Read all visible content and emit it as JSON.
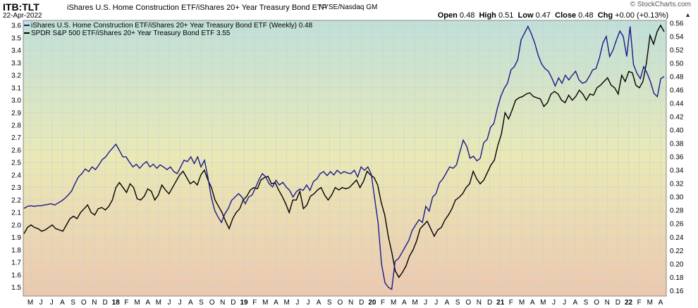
{
  "header": {
    "ticker": "ITB:TLT",
    "description": "iShares U.S. Home Construction ETF/iShares 20+ Year Treasury Bond ETF",
    "exchange": "NYSE/Nasdaq GM",
    "date": "22-Apr-2022",
    "brand": "© StockCharts.com",
    "arrow": "▲",
    "open_label": "Open",
    "open": "0.48",
    "high_label": "High",
    "high": "0.51",
    "low_label": "Low",
    "low": "0.47",
    "close_label": "Close",
    "close": "0.48",
    "chg_label": "Chg",
    "chg": "+0.00 (+0.13%)"
  },
  "colors": {
    "itb_tlt": "#1a1a8c",
    "spx_tlt": "#000000",
    "bg_top": "#bfe0d9",
    "bg_mid": "#eae9b5",
    "bg_bottom": "#ecc8ae",
    "grid": "#cfcfcf"
  },
  "chart_data": {
    "type": "line",
    "left_axis": {
      "ticks": [
        "1.5",
        "1.6",
        "1.7",
        "1.8",
        "1.9",
        "2.0",
        "2.1",
        "2.2",
        "2.3",
        "2.4",
        "2.5",
        "2.6",
        "2.7",
        "2.8",
        "2.9",
        "3.0",
        "3.1",
        "3.2",
        "3.3",
        "3.4",
        "3.5",
        "3.6"
      ],
      "ylim": [
        1.43,
        3.64
      ]
    },
    "right_axis": {
      "ticks": [
        "0.16",
        "0.18",
        "0.20",
        "0.22",
        "0.24",
        "0.26",
        "0.28",
        "0.30",
        "0.32",
        "0.34",
        "0.36",
        "0.38",
        "0.40",
        "0.42",
        "0.44",
        "0.46",
        "0.48",
        "0.50",
        "0.52",
        "0.54",
        "0.56"
      ],
      "ylim": [
        0.152,
        0.564
      ]
    },
    "x_labels": [
      "M",
      "J",
      "J",
      "A",
      "S",
      "O",
      "N",
      "D",
      "18",
      "F",
      "M",
      "A",
      "M",
      "J",
      "J",
      "A",
      "S",
      "O",
      "N",
      "D",
      "19",
      "F",
      "M",
      "A",
      "M",
      "J",
      "J",
      "A",
      "S",
      "O",
      "N",
      "D",
      "20",
      "F",
      "M",
      "A",
      "M",
      "J",
      "J",
      "A",
      "S",
      "O",
      "N",
      "D",
      "21",
      "F",
      "M",
      "A",
      "M",
      "J",
      "J",
      "A",
      "S",
      "O",
      "N",
      "D",
      "22",
      "F",
      "M",
      "A"
    ],
    "bold_x_labels": [
      "18",
      "19",
      "20",
      "21",
      "22"
    ],
    "series": [
      {
        "name": "iShares U.S. Home Construction ETF/iShares 20+ Year Treasury Bond ETF (Weekly) 0.48",
        "axis": "right",
        "values": [
          0.283,
          0.286,
          0.287,
          0.286,
          0.287,
          0.287,
          0.288,
          0.289,
          0.29,
          0.288,
          0.291,
          0.294,
          0.298,
          0.303,
          0.309,
          0.32,
          0.33,
          0.335,
          0.342,
          0.338,
          0.345,
          0.341,
          0.348,
          0.356,
          0.36,
          0.367,
          0.373,
          0.379,
          0.37,
          0.36,
          0.36,
          0.352,
          0.345,
          0.349,
          0.343,
          0.349,
          0.353,
          0.345,
          0.349,
          0.343,
          0.348,
          0.345,
          0.341,
          0.345,
          0.338,
          0.335,
          0.345,
          0.355,
          0.353,
          0.36,
          0.35,
          0.36,
          0.345,
          0.355,
          0.33,
          0.3,
          0.28,
          0.27,
          0.262,
          0.275,
          0.283,
          0.295,
          0.3,
          0.305,
          0.3,
          0.29,
          0.3,
          0.303,
          0.314,
          0.326,
          0.335,
          0.33,
          0.32,
          0.315,
          0.325,
          0.318,
          0.322,
          0.315,
          0.31,
          0.3,
          0.308,
          0.312,
          0.31,
          0.318,
          0.31,
          0.323,
          0.327,
          0.335,
          0.338,
          0.332,
          0.338,
          0.333,
          0.34,
          0.335,
          0.338,
          0.336,
          0.335,
          0.34,
          0.33,
          0.345,
          0.34,
          0.345,
          0.334,
          0.297,
          0.261,
          0.2,
          0.172,
          0.165,
          0.162,
          0.204,
          0.208,
          0.217,
          0.226,
          0.235,
          0.25,
          0.258,
          0.266,
          0.262,
          0.286,
          0.279,
          0.3,
          0.305,
          0.321,
          0.327,
          0.336,
          0.345,
          0.343,
          0.348,
          0.367,
          0.385,
          0.376,
          0.358,
          0.361,
          0.354,
          0.358,
          0.381,
          0.386,
          0.404,
          0.41,
          0.432,
          0.45,
          0.462,
          0.47,
          0.49,
          0.495,
          0.505,
          0.535,
          0.545,
          0.555,
          0.544,
          0.53,
          0.512,
          0.499,
          0.492,
          0.488,
          0.478,
          0.466,
          0.478,
          0.47,
          0.482,
          0.475,
          0.482,
          0.488,
          0.475,
          0.47,
          0.472,
          0.48,
          0.49,
          0.492,
          0.508,
          0.53,
          0.54,
          0.51,
          0.52,
          0.535,
          0.548,
          0.54,
          0.51,
          0.555,
          0.498,
          0.485,
          0.477,
          0.495,
          0.485,
          0.472,
          0.455,
          0.45,
          0.477,
          0.48
        ],
        "start": "2017-05-05",
        "interval": "weekly"
      },
      {
        "name": "SPDR S&P 500 ETF/iShares 20+ Year Treasury Bond ETF 3.55",
        "axis": "left",
        "values": [
          1.93,
          1.98,
          2.0,
          1.98,
          1.97,
          1.95,
          1.96,
          1.98,
          2.0,
          1.97,
          1.96,
          1.95,
          2.0,
          2.05,
          2.07,
          2.05,
          2.1,
          2.13,
          2.16,
          2.1,
          2.08,
          2.13,
          2.14,
          2.12,
          2.15,
          2.2,
          2.3,
          2.34,
          2.3,
          2.26,
          2.33,
          2.3,
          2.21,
          2.2,
          2.23,
          2.29,
          2.27,
          2.2,
          2.24,
          2.32,
          2.28,
          2.25,
          2.3,
          2.35,
          2.4,
          2.43,
          2.38,
          2.33,
          2.35,
          2.32,
          2.4,
          2.44,
          2.36,
          2.3,
          2.2,
          2.15,
          2.1,
          2.03,
          1.97,
          2.05,
          2.1,
          2.13,
          2.2,
          2.23,
          2.28,
          2.3,
          2.29,
          2.36,
          2.38,
          2.39,
          2.33,
          2.34,
          2.28,
          2.23,
          2.17,
          2.1,
          2.2,
          2.2,
          2.27,
          2.13,
          2.16,
          2.23,
          2.25,
          2.28,
          2.3,
          2.24,
          2.2,
          2.24,
          2.3,
          2.28,
          2.3,
          2.29,
          2.3,
          2.33,
          2.36,
          2.3,
          2.35,
          2.43,
          2.4,
          2.38,
          2.32,
          2.18,
          2.08,
          1.91,
          1.78,
          1.63,
          1.58,
          1.62,
          1.67,
          1.75,
          1.8,
          1.87,
          1.97,
          2.0,
          2.03,
          1.97,
          1.91,
          1.96,
          1.98,
          2.04,
          2.08,
          2.13,
          2.2,
          2.22,
          2.25,
          2.3,
          2.33,
          2.43,
          2.37,
          2.33,
          2.36,
          2.42,
          2.48,
          2.52,
          2.64,
          2.73,
          2.9,
          2.85,
          2.92,
          3.0,
          3.02,
          3.03,
          3.05,
          3.06,
          3.03,
          3.02,
          3.01,
          2.95,
          2.98,
          3.05,
          3.07,
          3.05,
          3.0,
          2.98,
          3.04,
          3.0,
          3.03,
          3.08,
          3.05,
          3.0,
          3.05,
          3.04,
          3.1,
          3.12,
          3.15,
          3.18,
          3.12,
          3.1,
          3.05,
          3.2,
          3.15,
          3.23,
          3.22,
          3.12,
          3.1,
          3.15,
          3.3,
          3.52,
          3.45,
          3.55,
          3.6,
          3.55
        ],
        "start": "2017-05-05",
        "interval": "weekly"
      }
    ]
  }
}
